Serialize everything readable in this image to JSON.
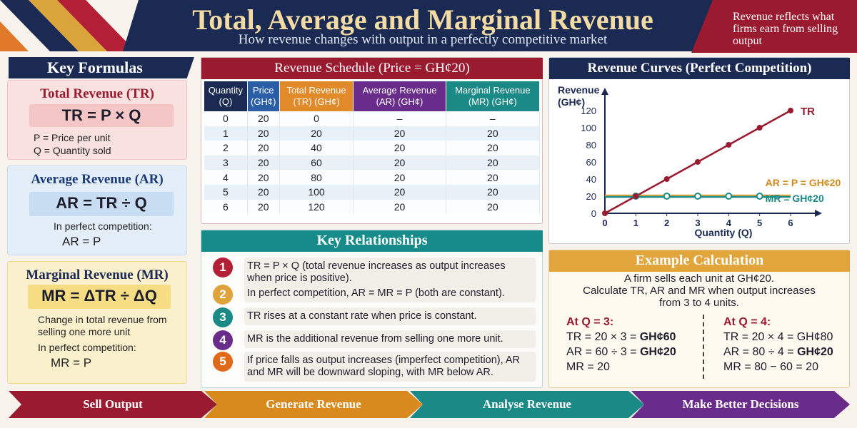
{
  "header": {
    "title": "Total, Average and Marginal Revenue",
    "subtitle": "How revenue changes with output in a perfectly competitive market",
    "note": "Revenue reflects what firms earn from selling output"
  },
  "formulas": {
    "heading": "Key Formulas",
    "tr": {
      "title": "Total Revenue (TR)",
      "equation": "TR = P × Q",
      "line1": "P = Price per unit",
      "line2": "Q = Quantity sold"
    },
    "ar": {
      "title": "Average Revenue (AR)",
      "equation": "AR = TR ÷ Q",
      "line1": "In perfect competition:",
      "line2": "AR = P"
    },
    "mr": {
      "title": "Marginal Revenue (MR)",
      "equation": "MR = ΔTR ÷ ΔQ",
      "line1": "Change in total revenue from",
      "line2": "selling one more unit",
      "line3": "In perfect competition:",
      "line4": "MR = P"
    }
  },
  "schedule": {
    "heading": "Revenue Schedule (Price = GH¢20)",
    "columns": [
      {
        "label1": "Quantity",
        "label2": "(Q)",
        "color": "#1b2a52"
      },
      {
        "label1": "Price",
        "label2": "(GH¢)",
        "color": "#2a5fa8"
      },
      {
        "label1": "Total Revenue",
        "label2": "(TR) (GH¢)",
        "color": "#e08a2a"
      },
      {
        "label1": "Average Revenue",
        "label2": "(AR) (GH¢)",
        "color": "#6a2c8a"
      },
      {
        "label1": "Marginal Revenue",
        "label2": "(MR) (GH¢)",
        "color": "#1b8a86"
      }
    ],
    "rows": [
      [
        "0",
        "20",
        "0",
        "–",
        "–"
      ],
      [
        "1",
        "20",
        "20",
        "20",
        "20"
      ],
      [
        "2",
        "20",
        "40",
        "20",
        "20"
      ],
      [
        "3",
        "20",
        "60",
        "20",
        "20"
      ],
      [
        "4",
        "20",
        "80",
        "20",
        "20"
      ],
      [
        "5",
        "20",
        "100",
        "20",
        "20"
      ],
      [
        "6",
        "20",
        "120",
        "20",
        "20"
      ]
    ]
  },
  "relationships": {
    "heading": "Key Relationships",
    "items": [
      {
        "num": "1",
        "color": "#b31f35",
        "text": "TR = P × Q (total revenue increases as output increases when price is positive)."
      },
      {
        "num": "2",
        "color": "#e0a23a",
        "text": "In perfect competition, AR = MR = P (both are constant)."
      },
      {
        "num": "3",
        "color": "#1b8a86",
        "text": "TR rises at a constant rate when price is constant."
      },
      {
        "num": "4",
        "color": "#6a2c8a",
        "text": "MR is the additional revenue from selling one more unit."
      },
      {
        "num": "5",
        "color": "#e06a1a",
        "text": "If price falls as output increases (imperfect competition), AR and MR will be downward sloping, with MR below AR."
      }
    ]
  },
  "chart_data": {
    "type": "line",
    "title": "Revenue Curves (Perfect Competition)",
    "xlabel": "Quantity (Q)",
    "ylabel": "Revenue (GH¢)",
    "x": [
      0,
      1,
      2,
      3,
      4,
      5,
      6
    ],
    "xlim": [
      0,
      6
    ],
    "ylim": [
      0,
      120
    ],
    "yticks": [
      0,
      20,
      40,
      60,
      80,
      100,
      120
    ],
    "grid": false,
    "series": [
      {
        "name": "TR",
        "values": [
          0,
          20,
          40,
          60,
          80,
          100,
          120
        ],
        "color": "#9a1a30"
      },
      {
        "name": "AR = P = GH¢20",
        "values": [
          20,
          20,
          20,
          20,
          20,
          20,
          20
        ],
        "color": "#e0a23a"
      },
      {
        "name": "MR = GH¢20",
        "values": [
          20,
          20,
          20,
          20,
          20,
          20,
          20
        ],
        "color": "#1b8a86"
      }
    ]
  },
  "example": {
    "heading": "Example Calculation",
    "intro1": "A firm sells each unit at GH¢20.",
    "intro2": "Calculate TR, AR and MR when output increases",
    "intro3": "from 3 to 4 units.",
    "left": {
      "head": "At Q = 3:",
      "l1": "TR = 20 × 3 = ",
      "v1": "GH¢60",
      "l2": "AR = 60 ÷ 3 = ",
      "v2": "GH¢20",
      "l3": "MR = 20"
    },
    "right": {
      "head": "At Q = 4:",
      "l1": "TR = 20 × 4 = ",
      "v1": "GH¢80",
      "l2": "AR = 80 ÷ 4 = ",
      "v2": "GH¢20",
      "l3": "MR = 80 − 60 = 20"
    }
  },
  "flow": [
    {
      "label": "Sell Output",
      "color": "#9a1a30"
    },
    {
      "label": "Generate Revenue",
      "color": "#d98a1e"
    },
    {
      "label": "Analyse Revenue",
      "color": "#1b8a86"
    },
    {
      "label": "Make Better Decisions",
      "color": "#6a2c8a"
    }
  ]
}
